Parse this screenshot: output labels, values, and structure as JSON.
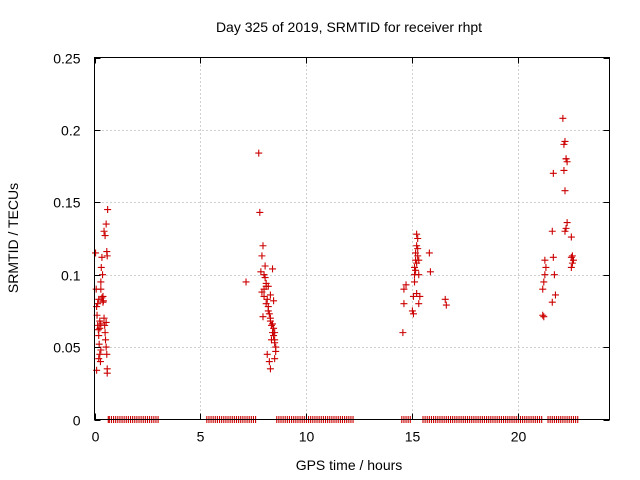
{
  "chart_data": {
    "type": "scatter",
    "title": "Day 325 of 2019, SRMTID for receiver rhpt",
    "xlabel": "GPS time / hours",
    "ylabel": "SRMTID / TECUs",
    "xlim": [
      0,
      24.3
    ],
    "ylim": [
      0,
      0.25
    ],
    "xticks": [
      0,
      5,
      10,
      15,
      20
    ],
    "xtick_labels": [
      "0",
      "5",
      "10",
      "15",
      "20"
    ],
    "yticks": [
      0,
      0.05,
      0.1,
      0.15,
      0.2,
      0.25
    ],
    "ytick_labels": [
      "0",
      "0.05",
      "0.1",
      "0.15",
      "0.2",
      "0.25"
    ],
    "grid": true,
    "marker": "+",
    "color": "#cc0000",
    "series": [
      {
        "name": "SRMTID",
        "x": [
          0.05,
          0.08,
          0.1,
          0.12,
          0.15,
          0.18,
          0.2,
          0.22,
          0.25,
          0.28,
          0.3,
          0.32,
          0.35,
          0.38,
          0.4,
          0.42,
          0.45,
          0.48,
          0.5,
          0.52,
          0.55,
          0.58,
          0.6,
          0.6,
          0.62,
          0.15,
          0.2,
          0.25,
          0.3,
          0.35,
          0.4,
          0.1,
          0.2,
          0.3,
          0.45,
          0.5,
          0.55,
          0.58,
          0.6,
          0.55,
          0.3,
          0.25,
          7.15,
          7.75,
          7.8,
          7.9,
          7.95,
          8.0,
          8.05,
          8.1,
          8.15,
          8.2,
          8.25,
          8.3,
          8.35,
          8.4,
          8.45,
          8.5,
          8.55,
          7.85,
          7.9,
          8.0,
          8.1,
          8.2,
          8.3,
          8.4,
          8.45,
          8.5,
          8.15,
          8.25,
          8.35,
          8.5,
          8.55,
          8.05,
          8.1,
          8.2,
          8.3,
          8.4,
          8.45,
          8.0,
          7.95,
          8.5,
          8.3,
          14.55,
          14.6,
          14.6,
          14.7,
          15.0,
          15.05,
          15.1,
          15.1,
          15.15,
          15.15,
          15.2,
          15.2,
          15.25,
          15.25,
          15.3,
          15.3,
          15.35,
          15.1,
          15.2,
          15.25,
          15.15,
          15.3,
          15.05,
          15.2,
          15.8,
          15.85,
          16.55,
          16.6,
          21.15,
          21.2,
          21.25,
          21.2,
          21.25,
          21.3,
          21.15,
          21.6,
          21.65,
          21.7,
          21.75,
          21.6,
          21.65,
          22.1,
          22.15,
          22.2,
          22.25,
          22.3,
          22.15,
          22.2,
          22.25,
          22.3,
          22.2,
          22.25,
          22.5,
          22.5,
          22.55,
          22.5,
          22.55,
          22.6
        ],
        "y": [
          0.115,
          0.09,
          0.078,
          0.072,
          0.065,
          0.062,
          0.058,
          0.052,
          0.045,
          0.04,
          0.095,
          0.105,
          0.112,
          0.1,
          0.085,
          0.082,
          0.07,
          0.065,
          0.06,
          0.055,
          0.05,
          0.045,
          0.035,
          0.032,
          0.145,
          0.08,
          0.083,
          0.068,
          0.066,
          0.084,
          0.081,
          0.034,
          0.042,
          0.09,
          0.13,
          0.127,
          0.135,
          0.116,
          0.113,
          0.067,
          0.048,
          0.063,
          0.095,
          0.184,
          0.143,
          0.113,
          0.12,
          0.1,
          0.106,
          0.092,
          0.083,
          0.078,
          0.073,
          0.068,
          0.065,
          0.06,
          0.058,
          0.055,
          0.05,
          0.102,
          0.088,
          0.085,
          0.08,
          0.075,
          0.07,
          0.066,
          0.063,
          0.06,
          0.045,
          0.04,
          0.055,
          0.053,
          0.047,
          0.098,
          0.094,
          0.092,
          0.086,
          0.104,
          0.082,
          0.09,
          0.071,
          0.042,
          0.035,
          0.06,
          0.08,
          0.09,
          0.093,
          0.075,
          0.085,
          0.1,
          0.105,
          0.11,
          0.115,
          0.108,
          0.12,
          0.125,
          0.113,
          0.11,
          0.1,
          0.085,
          0.095,
          0.128,
          0.118,
          0.103,
          0.08,
          0.073,
          0.087,
          0.115,
          0.102,
          0.083,
          0.079,
          0.072,
          0.071,
          0.11,
          0.095,
          0.1,
          0.105,
          0.09,
          0.13,
          0.112,
          0.1,
          0.086,
          0.081,
          0.17,
          0.208,
          0.19,
          0.192,
          0.18,
          0.178,
          0.172,
          0.158,
          0.18,
          0.136,
          0.13,
          0.132,
          0.126,
          0.112,
          0.113,
          0.105,
          0.108,
          0.11
        ],
        "zeros_x": [
          0.65,
          0.7,
          0.8,
          0.9,
          1.0,
          1.1,
          1.2,
          1.3,
          1.4,
          1.5,
          1.6,
          1.7,
          1.8,
          1.9,
          2.0,
          2.1,
          2.2,
          2.3,
          2.4,
          2.5,
          2.6,
          2.7,
          2.8,
          2.9,
          3.0,
          5.3,
          5.4,
          5.5,
          5.6,
          5.7,
          5.8,
          5.9,
          6.0,
          6.1,
          6.2,
          6.3,
          6.4,
          6.5,
          6.6,
          6.7,
          6.8,
          6.9,
          7.0,
          7.1,
          7.2,
          7.3,
          7.4,
          7.5,
          7.6,
          8.6,
          8.7,
          8.8,
          8.9,
          9.0,
          9.1,
          9.2,
          9.3,
          9.4,
          9.5,
          9.6,
          9.7,
          9.8,
          9.9,
          10.0,
          10.1,
          10.2,
          10.3,
          10.4,
          10.5,
          10.6,
          10.7,
          10.8,
          10.9,
          11.0,
          11.1,
          11.2,
          11.3,
          11.4,
          11.5,
          11.6,
          11.7,
          11.8,
          11.9,
          12.0,
          12.1,
          12.2,
          14.5,
          14.6,
          14.7,
          14.8,
          14.9,
          15.5,
          15.6,
          15.7,
          15.8,
          15.9,
          16.0,
          16.1,
          16.2,
          16.3,
          16.4,
          16.5,
          16.6,
          16.7,
          16.8,
          16.9,
          17.0,
          17.1,
          17.2,
          17.3,
          17.4,
          17.5,
          17.6,
          17.7,
          17.8,
          17.9,
          18.0,
          18.1,
          18.2,
          18.3,
          18.4,
          18.5,
          18.6,
          18.7,
          18.8,
          18.9,
          19.0,
          19.1,
          19.2,
          19.3,
          19.4,
          19.5,
          19.6,
          19.7,
          19.8,
          19.9,
          20.0,
          20.1,
          20.2,
          20.3,
          20.4,
          20.5,
          20.6,
          20.7,
          20.8,
          20.9,
          21.0,
          21.1,
          21.4,
          21.5,
          21.6,
          21.7,
          21.8,
          21.9,
          22.0,
          22.1,
          22.2,
          22.3,
          22.4,
          22.5,
          22.6,
          22.7,
          22.8
        ]
      }
    ]
  }
}
